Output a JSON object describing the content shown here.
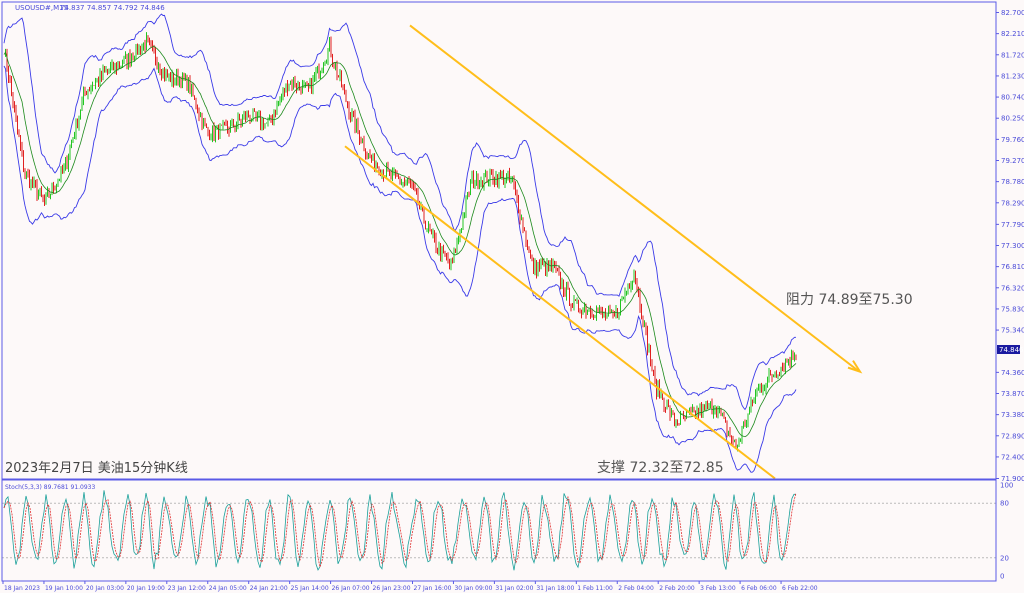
{
  "header": {
    "symbol_label": "USOUSD#,M15",
    "ohlc": "74.837 74.857 74.792 74.846"
  },
  "caption": "2023年2月7日 美油15分钟K线",
  "annotations": {
    "resistance": "阻力 74.89至75.30",
    "support": "支撑 72.32至72.85"
  },
  "current_price": "74.846",
  "colors": {
    "axis": "#5a5ae6",
    "bands": "#3a3ae8",
    "bull_candle": "#22c522",
    "bear_candle": "#e02020",
    "channel": "#ffbe1a",
    "price_tag": "#1a1aa0",
    "stoch_main": "#1aa09a",
    "stoch_signal": "#e03030"
  },
  "chart_data": [
    {
      "type": "line",
      "title": "",
      "series": [
        {
          "values": [
            81.9,
            79.0,
            78.3,
            79.1,
            80.9,
            81.3,
            81.6,
            82.0,
            81.2,
            81.1,
            79.9,
            80.0,
            80.3,
            80.1,
            81.1,
            80.9,
            81.9,
            80.4,
            79.3,
            78.9,
            78.7,
            77.5,
            76.8,
            78.8,
            78.9,
            78.8,
            76.8,
            76.8,
            75.9,
            75.8,
            75.6,
            76.7,
            74.1,
            73.2,
            73.4,
            73.6,
            72.6,
            73.9,
            74.4,
            74.846
          ]
        }
      ],
      "price_axis": {
        "ticks": [
          "82.700",
          "82.210",
          "81.720",
          "81.230",
          "80.740",
          "80.250",
          "79.760",
          "79.270",
          "78.780",
          "78.290",
          "77.790",
          "77.300",
          "76.810",
          "76.320",
          "75.830",
          "75.340",
          "74.360",
          "73.870",
          "73.380",
          "72.890",
          "72.400",
          "71.900"
        ],
        "range": [
          71.9,
          82.7
        ]
      },
      "time_axis": {
        "ticks": [
          "18 Jan 2023",
          "19 Jan 10:00",
          "20 Jan 03:00",
          "20 Jan 19:00",
          "23 Jan 12:00",
          "24 Jan 05:00",
          "24 Jan 21:00",
          "25 Jan 14:00",
          "26 Jan 07:00",
          "26 Jan 23:00",
          "27 Jan 16:00",
          "30 Jan 09:00",
          "31 Jan 02:00",
          "31 Jan 18:00",
          "1 Feb 11:00",
          "2 Feb 04:00",
          "2 Feb 20:00",
          "3 Feb 13:00",
          "6 Feb 06:00",
          "6 Feb 22:00"
        ]
      },
      "channel": {
        "upper_start": 82.4,
        "upper_end": 74.4,
        "lower_start": 79.6,
        "lower_end": 71.9
      }
    },
    {
      "type": "line",
      "indicator_label": "Stoch(5,3,3) 89.7681 91.0933",
      "y_ticks": [
        "100",
        "80",
        "20",
        "0"
      ],
      "range": [
        0,
        100
      ],
      "levels": [
        80,
        20
      ],
      "last_main": 89.7681,
      "last_signal": 91.0933
    }
  ]
}
